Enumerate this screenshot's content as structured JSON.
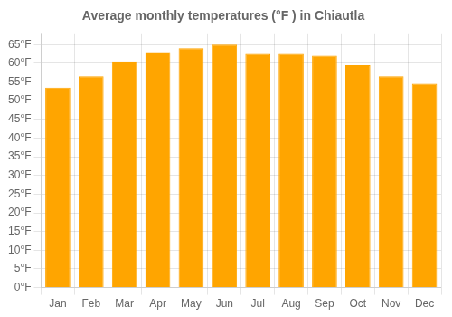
{
  "chart_data": {
    "type": "bar",
    "title": "Average monthly temperatures (°F ) in Chiautla",
    "categories": [
      "Jan",
      "Feb",
      "Mar",
      "Apr",
      "May",
      "Jun",
      "Jul",
      "Aug",
      "Sep",
      "Oct",
      "Nov",
      "Dec"
    ],
    "values": [
      53.5,
      56.5,
      60.5,
      63.0,
      64.0,
      65.0,
      62.5,
      62.5,
      62.0,
      59.5,
      56.5,
      54.5
    ],
    "color": "#FFA500",
    "ylim": [
      0,
      68
    ],
    "yticks": [
      {
        "value": 0,
        "label": "0°F"
      },
      {
        "value": 5,
        "label": "5°F"
      },
      {
        "value": 10,
        "label": "10°F"
      },
      {
        "value": 15,
        "label": "15°F"
      },
      {
        "value": 20,
        "label": "20°F"
      },
      {
        "value": 25,
        "label": "25°F"
      },
      {
        "value": 30,
        "label": "30°F"
      },
      {
        "value": 35,
        "label": "35°F"
      },
      {
        "value": 40,
        "label": "40°F"
      },
      {
        "value": 45,
        "label": "45°F"
      },
      {
        "value": 50,
        "label": "50°F"
      },
      {
        "value": 55,
        "label": "55°F"
      },
      {
        "value": 60,
        "label": "60°F"
      },
      {
        "value": 65,
        "label": "65°F"
      }
    ],
    "grid": true
  }
}
